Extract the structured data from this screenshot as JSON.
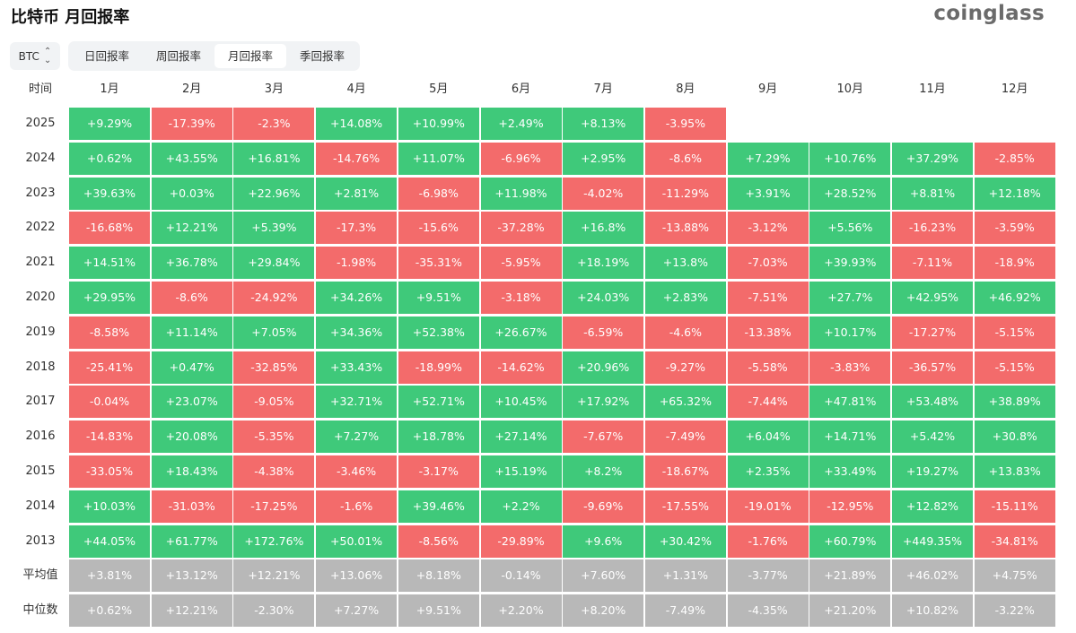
{
  "title": "比特币 月回报率",
  "logo": "coinglass",
  "selector": {
    "value": "BTC",
    "icon": "chevron-updown-icon"
  },
  "tabs": [
    {
      "label": "日回报率",
      "active": false
    },
    {
      "label": "周回报率",
      "active": false
    },
    {
      "label": "月回报率",
      "active": true
    },
    {
      "label": "季回报率",
      "active": false
    }
  ],
  "colors": {
    "positive": "#3fc97a",
    "negative": "#f36b6b",
    "stat": "#b8b8b8"
  },
  "table": {
    "corner": "时间",
    "months": [
      "1月",
      "2月",
      "3月",
      "4月",
      "5月",
      "6月",
      "7月",
      "8月",
      "9月",
      "10月",
      "11月",
      "12月"
    ],
    "rows": [
      {
        "label": "2025",
        "cells": [
          "+9.29%",
          "-17.39%",
          "-2.3%",
          "+14.08%",
          "+10.99%",
          "+2.49%",
          "+8.13%",
          "-3.95%",
          "",
          "",
          "",
          ""
        ]
      },
      {
        "label": "2024",
        "cells": [
          "+0.62%",
          "+43.55%",
          "+16.81%",
          "-14.76%",
          "+11.07%",
          "-6.96%",
          "+2.95%",
          "-8.6%",
          "+7.29%",
          "+10.76%",
          "+37.29%",
          "-2.85%"
        ]
      },
      {
        "label": "2023",
        "cells": [
          "+39.63%",
          "+0.03%",
          "+22.96%",
          "+2.81%",
          "-6.98%",
          "+11.98%",
          "-4.02%",
          "-11.29%",
          "+3.91%",
          "+28.52%",
          "+8.81%",
          "+12.18%"
        ]
      },
      {
        "label": "2022",
        "cells": [
          "-16.68%",
          "+12.21%",
          "+5.39%",
          "-17.3%",
          "-15.6%",
          "-37.28%",
          "+16.8%",
          "-13.88%",
          "-3.12%",
          "+5.56%",
          "-16.23%",
          "-3.59%"
        ]
      },
      {
        "label": "2021",
        "cells": [
          "+14.51%",
          "+36.78%",
          "+29.84%",
          "-1.98%",
          "-35.31%",
          "-5.95%",
          "+18.19%",
          "+13.8%",
          "-7.03%",
          "+39.93%",
          "-7.11%",
          "-18.9%"
        ]
      },
      {
        "label": "2020",
        "cells": [
          "+29.95%",
          "-8.6%",
          "-24.92%",
          "+34.26%",
          "+9.51%",
          "-3.18%",
          "+24.03%",
          "+2.83%",
          "-7.51%",
          "+27.7%",
          "+42.95%",
          "+46.92%"
        ]
      },
      {
        "label": "2019",
        "cells": [
          "-8.58%",
          "+11.14%",
          "+7.05%",
          "+34.36%",
          "+52.38%",
          "+26.67%",
          "-6.59%",
          "-4.6%",
          "-13.38%",
          "+10.17%",
          "-17.27%",
          "-5.15%"
        ]
      },
      {
        "label": "2018",
        "cells": [
          "-25.41%",
          "+0.47%",
          "-32.85%",
          "+33.43%",
          "-18.99%",
          "-14.62%",
          "+20.96%",
          "-9.27%",
          "-5.58%",
          "-3.83%",
          "-36.57%",
          "-5.15%"
        ]
      },
      {
        "label": "2017",
        "cells": [
          "-0.04%",
          "+23.07%",
          "-9.05%",
          "+32.71%",
          "+52.71%",
          "+10.45%",
          "+17.92%",
          "+65.32%",
          "-7.44%",
          "+47.81%",
          "+53.48%",
          "+38.89%"
        ]
      },
      {
        "label": "2016",
        "cells": [
          "-14.83%",
          "+20.08%",
          "-5.35%",
          "+7.27%",
          "+18.78%",
          "+27.14%",
          "-7.67%",
          "-7.49%",
          "+6.04%",
          "+14.71%",
          "+5.42%",
          "+30.8%"
        ]
      },
      {
        "label": "2015",
        "cells": [
          "-33.05%",
          "+18.43%",
          "-4.38%",
          "-3.46%",
          "-3.17%",
          "+15.19%",
          "+8.2%",
          "-18.67%",
          "+2.35%",
          "+33.49%",
          "+19.27%",
          "+13.83%"
        ]
      },
      {
        "label": "2014",
        "cells": [
          "+10.03%",
          "-31.03%",
          "-17.25%",
          "-1.6%",
          "+39.46%",
          "+2.2%",
          "-9.69%",
          "-17.55%",
          "-19.01%",
          "-12.95%",
          "+12.82%",
          "-15.11%"
        ]
      },
      {
        "label": "2013",
        "cells": [
          "+44.05%",
          "+61.77%",
          "+172.76%",
          "+50.01%",
          "-8.56%",
          "-29.89%",
          "+9.6%",
          "+30.42%",
          "-1.76%",
          "+60.79%",
          "+449.35%",
          "-34.81%"
        ]
      }
    ],
    "stats": [
      {
        "label": "平均值",
        "cells": [
          "+3.81%",
          "+13.12%",
          "+12.21%",
          "+13.06%",
          "+8.18%",
          "-0.14%",
          "+7.60%",
          "+1.31%",
          "-3.77%",
          "+21.89%",
          "+46.02%",
          "+4.75%"
        ]
      },
      {
        "label": "中位数",
        "cells": [
          "+0.62%",
          "+12.21%",
          "-2.30%",
          "+7.27%",
          "+9.51%",
          "+2.20%",
          "+8.20%",
          "-7.49%",
          "-4.35%",
          "+21.20%",
          "+10.82%",
          "-3.22%"
        ]
      }
    ]
  }
}
